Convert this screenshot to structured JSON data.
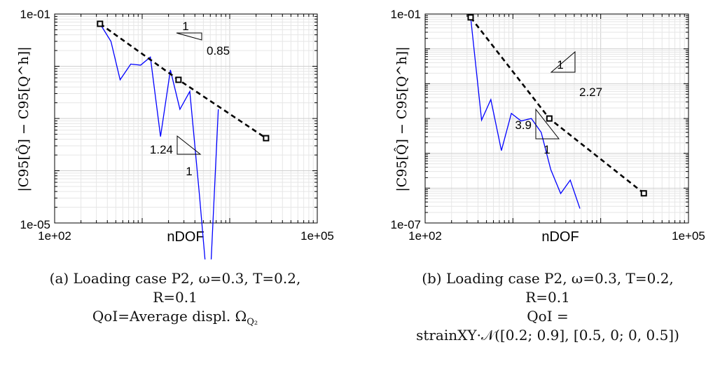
{
  "chart_data": [
    {
      "type": "line",
      "xscale": "log",
      "yscale": "log",
      "xlim": [
        100,
        100000
      ],
      "ylim": [
        1e-05,
        0.1
      ],
      "xlabel": "nDOF",
      "ylabel": "|C95[Q̂] − C95[Q^h]|",
      "xticks": [
        "1e+02",
        "1e+05"
      ],
      "yticks": [
        "1e-01",
        "1e-05"
      ],
      "grid": true,
      "series": [
        {
          "style": "solid",
          "color": "#0000ff",
          "x": [
            330,
            440,
            560,
            740,
            960,
            1240,
            1620,
            2100,
            2700,
            3500,
            4500,
            5800,
            7400
          ],
          "y": [
            0.065,
            0.03,
            0.0055,
            0.011,
            0.0105,
            0.015,
            0.00045,
            0.0085,
            0.0015,
            0.0033,
            3.5e-05,
            2.6e-07,
            0.0015
          ]
        },
        {
          "style": "dashed",
          "marker": "square",
          "color": "#000000",
          "x": [
            330,
            2600,
            26000
          ],
          "y": [
            0.065,
            0.0055,
            0.00042
          ]
        }
      ],
      "annotations": [
        {
          "top": "1",
          "side": "0.85"
        },
        {
          "side": "1.24",
          "bottom": "1"
        }
      ],
      "caption": {
        "line1": "(a) Loading case P2, ω=0.3, T=0.2,",
        "line2": "R=0.1",
        "line3": "QoI=Average displ. Ω",
        "line3_sub": "Q₂"
      }
    },
    {
      "type": "line",
      "xscale": "log",
      "yscale": "log",
      "xlim": [
        100,
        100000
      ],
      "ylim": [
        1e-07,
        0.1
      ],
      "xlabel": "nDOF",
      "ylabel": "|C95[Q̂] − C95[Q^h]|",
      "xticks": [
        "1e+02",
        "1e+05"
      ],
      "yticks": [
        "1e-01",
        "1e-07"
      ],
      "grid": true,
      "series": [
        {
          "style": "solid",
          "color": "#0000ff",
          "x": [
            330,
            440,
            560,
            740,
            960,
            1240,
            1620,
            2100,
            2700,
            3500,
            4500,
            5800
          ],
          "y": [
            0.08,
            9e-05,
            0.00035,
            1.2e-05,
            0.00014,
            8.5e-05,
            0.0001,
            4e-05,
            3.4e-06,
            7e-07,
            1.7e-06,
            2.6e-07
          ]
        },
        {
          "style": "dashed",
          "marker": "square",
          "color": "#000000",
          "x": [
            330,
            2600,
            31000
          ],
          "y": [
            0.08,
            0.0001,
            7.1e-07
          ]
        }
      ],
      "annotations": [
        {
          "top": "1",
          "side": "2.27"
        },
        {
          "side": "3.9",
          "bottom": "1"
        }
      ],
      "caption": {
        "line1": "(b) Loading case P2, ω=0.3, T=0.2,",
        "line2": "R=0.1",
        "line3": "QoI =",
        "line4": "strainXY·𝒩([0.2; 0.9], [0.5, 0; 0, 0.5])"
      }
    }
  ]
}
